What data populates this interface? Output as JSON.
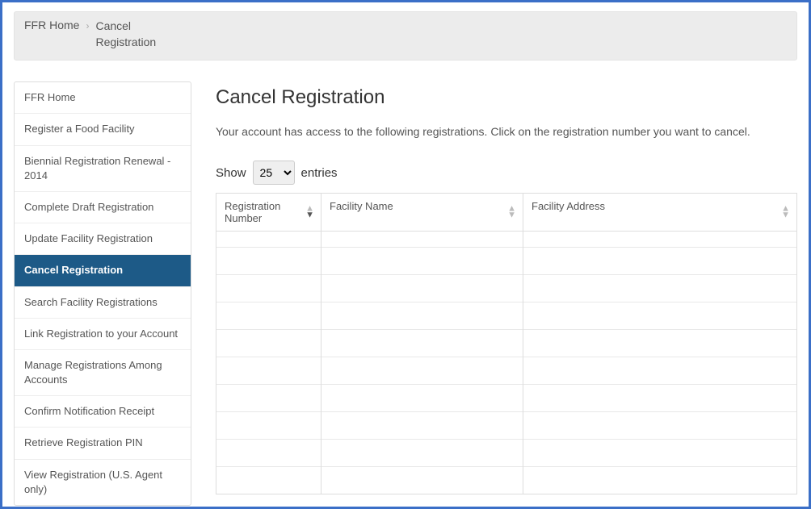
{
  "breadcrumb": {
    "home": "FFR Home",
    "current": "Cancel Registration"
  },
  "sidebar": {
    "items": [
      {
        "label": "FFR Home",
        "active": false
      },
      {
        "label": "Register a Food Facility",
        "active": false
      },
      {
        "label": "Biennial Registration Renewal - 2014",
        "active": false
      },
      {
        "label": "Complete Draft Registration",
        "active": false
      },
      {
        "label": "Update Facility Registration",
        "active": false
      },
      {
        "label": "Cancel Registration",
        "active": true
      },
      {
        "label": "Search Facility Registrations",
        "active": false
      },
      {
        "label": "Link Registration to your Account",
        "active": false
      },
      {
        "label": "Manage Registrations Among Accounts",
        "active": false
      },
      {
        "label": "Confirm Notification Receipt",
        "active": false
      },
      {
        "label": "Retrieve Registration PIN",
        "active": false
      },
      {
        "label": "View Registration (U.S. Agent only)",
        "active": false
      }
    ]
  },
  "main": {
    "title": "Cancel Registration",
    "subtitle": "Your account has access to the following registrations. Click on the registration number you want to cancel.",
    "show_label": "Show",
    "entries_label": "entries",
    "page_size": "25",
    "columns": {
      "reg": "Registration Number",
      "name": "Facility Name",
      "addr": "Facility Address"
    }
  },
  "colors": {
    "frame_border": "#3b6fc7",
    "sidebar_active_bg": "#1d5a87",
    "breadcrumb_bg": "#ececec"
  }
}
